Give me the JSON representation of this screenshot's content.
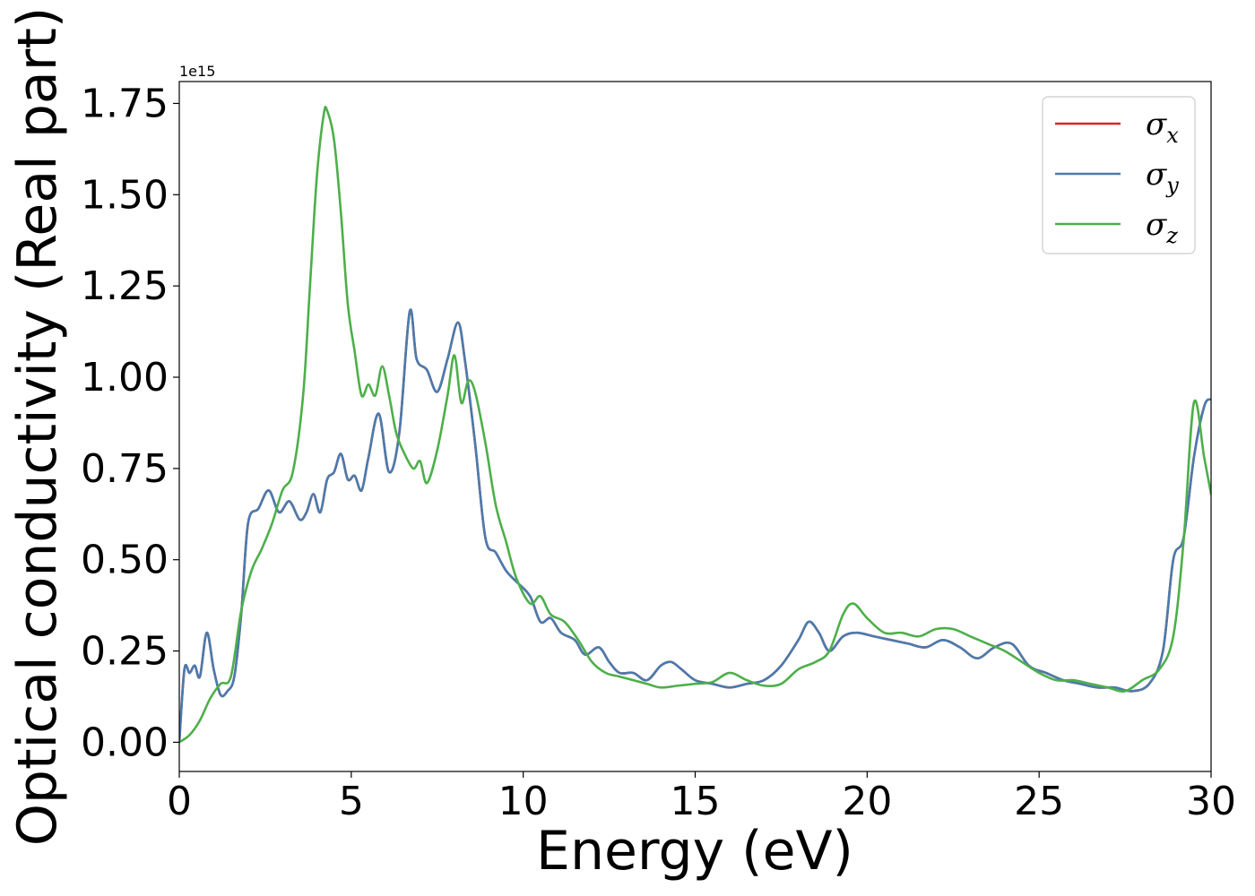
{
  "chart_data": {
    "type": "line",
    "title": "",
    "xlabel": "Energy (eV)",
    "ylabel": "Optical conductivity (Real part)",
    "y_offset_label": "1e15",
    "xlim": [
      0,
      30
    ],
    "ylim": [
      -0.08,
      1.81
    ],
    "xticks": [
      0,
      5,
      10,
      15,
      20,
      25,
      30
    ],
    "yticks": [
      0.0,
      0.25,
      0.5,
      0.75,
      1.0,
      1.25,
      1.5,
      1.75
    ],
    "xtick_labels": [
      "0",
      "5",
      "10",
      "15",
      "20",
      "25",
      "30"
    ],
    "ytick_labels": [
      "0.00",
      "0.25",
      "0.50",
      "0.75",
      "1.00",
      "1.25",
      "1.50",
      "1.75"
    ],
    "grid": false,
    "legend_position": "top-right",
    "series": [
      {
        "name": "σ_x",
        "legend_main": "σ",
        "legend_sub": "x",
        "color": "#d62728",
        "x": [
          0,
          0.15,
          0.3,
          0.45,
          0.6,
          0.8,
          1.0,
          1.2,
          1.4,
          1.6,
          1.8,
          2.0,
          2.3,
          2.6,
          2.9,
          3.2,
          3.5,
          3.7,
          3.9,
          4.1,
          4.3,
          4.5,
          4.7,
          4.9,
          5.1,
          5.3,
          5.5,
          5.8,
          6.1,
          6.4,
          6.7,
          6.9,
          7.2,
          7.5,
          7.8,
          8.1,
          8.3,
          8.6,
          8.9,
          9.2,
          9.5,
          9.8,
          10.2,
          10.5,
          10.8,
          11.1,
          11.5,
          11.8,
          12.2,
          12.5,
          12.8,
          13.2,
          13.6,
          14.0,
          14.3,
          14.6,
          15.0,
          15.5,
          16.0,
          16.5,
          17.0,
          17.5,
          18.0,
          18.3,
          18.6,
          18.9,
          19.3,
          19.7,
          20.2,
          20.7,
          21.2,
          21.7,
          22.2,
          22.7,
          23.2,
          23.7,
          24.2,
          24.7,
          25.2,
          25.7,
          26.2,
          26.7,
          27.2,
          27.7,
          28.2,
          28.6,
          28.9,
          29.2,
          29.5,
          29.8,
          30.0
        ],
        "y": [
          0.0,
          0.2,
          0.19,
          0.21,
          0.18,
          0.3,
          0.2,
          0.13,
          0.14,
          0.18,
          0.35,
          0.6,
          0.64,
          0.69,
          0.63,
          0.66,
          0.61,
          0.63,
          0.68,
          0.63,
          0.72,
          0.74,
          0.79,
          0.72,
          0.73,
          0.69,
          0.78,
          0.9,
          0.74,
          0.85,
          1.18,
          1.05,
          1.02,
          0.96,
          1.05,
          1.15,
          1.05,
          0.82,
          0.56,
          0.52,
          0.47,
          0.44,
          0.4,
          0.33,
          0.34,
          0.3,
          0.28,
          0.24,
          0.26,
          0.22,
          0.19,
          0.19,
          0.17,
          0.21,
          0.22,
          0.2,
          0.17,
          0.16,
          0.15,
          0.16,
          0.17,
          0.21,
          0.28,
          0.33,
          0.3,
          0.25,
          0.29,
          0.3,
          0.29,
          0.28,
          0.27,
          0.26,
          0.28,
          0.26,
          0.23,
          0.26,
          0.27,
          0.21,
          0.19,
          0.17,
          0.16,
          0.15,
          0.15,
          0.14,
          0.16,
          0.25,
          0.5,
          0.56,
          0.78,
          0.92,
          0.94
        ]
      },
      {
        "name": "σ_y",
        "legend_main": "σ",
        "legend_sub": "y",
        "color": "#4a7bad",
        "x": [
          0,
          0.15,
          0.3,
          0.45,
          0.6,
          0.8,
          1.0,
          1.2,
          1.4,
          1.6,
          1.8,
          2.0,
          2.3,
          2.6,
          2.9,
          3.2,
          3.5,
          3.7,
          3.9,
          4.1,
          4.3,
          4.5,
          4.7,
          4.9,
          5.1,
          5.3,
          5.5,
          5.8,
          6.1,
          6.4,
          6.7,
          6.9,
          7.2,
          7.5,
          7.8,
          8.1,
          8.3,
          8.6,
          8.9,
          9.2,
          9.5,
          9.8,
          10.2,
          10.5,
          10.8,
          11.1,
          11.5,
          11.8,
          12.2,
          12.5,
          12.8,
          13.2,
          13.6,
          14.0,
          14.3,
          14.6,
          15.0,
          15.5,
          16.0,
          16.5,
          17.0,
          17.5,
          18.0,
          18.3,
          18.6,
          18.9,
          19.3,
          19.7,
          20.2,
          20.7,
          21.2,
          21.7,
          22.2,
          22.7,
          23.2,
          23.7,
          24.2,
          24.7,
          25.2,
          25.7,
          26.2,
          26.7,
          27.2,
          27.7,
          28.2,
          28.6,
          28.9,
          29.2,
          29.5,
          29.8,
          30.0
        ],
        "y": [
          0.0,
          0.2,
          0.19,
          0.21,
          0.18,
          0.3,
          0.2,
          0.13,
          0.14,
          0.18,
          0.35,
          0.6,
          0.64,
          0.69,
          0.63,
          0.66,
          0.61,
          0.63,
          0.68,
          0.63,
          0.72,
          0.74,
          0.79,
          0.72,
          0.73,
          0.69,
          0.78,
          0.9,
          0.74,
          0.85,
          1.18,
          1.05,
          1.02,
          0.96,
          1.05,
          1.15,
          1.05,
          0.82,
          0.56,
          0.52,
          0.47,
          0.44,
          0.4,
          0.33,
          0.34,
          0.3,
          0.28,
          0.24,
          0.26,
          0.22,
          0.19,
          0.19,
          0.17,
          0.21,
          0.22,
          0.2,
          0.17,
          0.16,
          0.15,
          0.16,
          0.17,
          0.21,
          0.28,
          0.33,
          0.3,
          0.25,
          0.29,
          0.3,
          0.29,
          0.28,
          0.27,
          0.26,
          0.28,
          0.26,
          0.23,
          0.26,
          0.27,
          0.21,
          0.19,
          0.17,
          0.16,
          0.15,
          0.15,
          0.14,
          0.16,
          0.25,
          0.5,
          0.56,
          0.78,
          0.92,
          0.94
        ]
      },
      {
        "name": "σ_z",
        "legend_main": "σ",
        "legend_sub": "z",
        "color": "#4daf4a",
        "x": [
          0,
          0.3,
          0.6,
          0.9,
          1.2,
          1.5,
          1.8,
          2.1,
          2.4,
          2.7,
          3.0,
          3.3,
          3.6,
          3.8,
          4.0,
          4.2,
          4.3,
          4.5,
          4.7,
          4.9,
          5.1,
          5.3,
          5.5,
          5.7,
          5.9,
          6.1,
          6.3,
          6.5,
          6.8,
          7.0,
          7.2,
          7.5,
          7.8,
          8.0,
          8.2,
          8.4,
          8.6,
          8.9,
          9.2,
          9.5,
          9.8,
          10.2,
          10.5,
          10.8,
          11.2,
          11.6,
          12.0,
          12.4,
          12.8,
          13.2,
          13.6,
          14.0,
          14.5,
          15.0,
          15.5,
          16.0,
          16.5,
          17.0,
          17.5,
          18.0,
          18.5,
          18.9,
          19.3,
          19.6,
          20.0,
          20.5,
          21.0,
          21.5,
          22.0,
          22.5,
          23.0,
          23.5,
          24.0,
          24.5,
          25.0,
          25.5,
          26.0,
          26.5,
          27.0,
          27.5,
          28.0,
          28.5,
          28.9,
          29.2,
          29.5,
          29.8,
          30.0
        ],
        "y": [
          0.0,
          0.02,
          0.06,
          0.12,
          0.16,
          0.18,
          0.36,
          0.47,
          0.53,
          0.6,
          0.69,
          0.74,
          0.95,
          1.25,
          1.55,
          1.72,
          1.73,
          1.65,
          1.45,
          1.2,
          1.07,
          0.95,
          0.98,
          0.95,
          1.03,
          0.95,
          0.85,
          0.8,
          0.75,
          0.77,
          0.71,
          0.8,
          0.95,
          1.06,
          0.93,
          0.99,
          0.96,
          0.82,
          0.65,
          0.55,
          0.45,
          0.38,
          0.4,
          0.35,
          0.33,
          0.28,
          0.22,
          0.19,
          0.18,
          0.17,
          0.16,
          0.15,
          0.155,
          0.16,
          0.165,
          0.19,
          0.17,
          0.155,
          0.16,
          0.2,
          0.22,
          0.25,
          0.35,
          0.38,
          0.34,
          0.3,
          0.3,
          0.29,
          0.31,
          0.31,
          0.29,
          0.27,
          0.25,
          0.22,
          0.19,
          0.17,
          0.17,
          0.16,
          0.15,
          0.14,
          0.17,
          0.2,
          0.29,
          0.55,
          0.93,
          0.78,
          0.68
        ]
      }
    ]
  }
}
